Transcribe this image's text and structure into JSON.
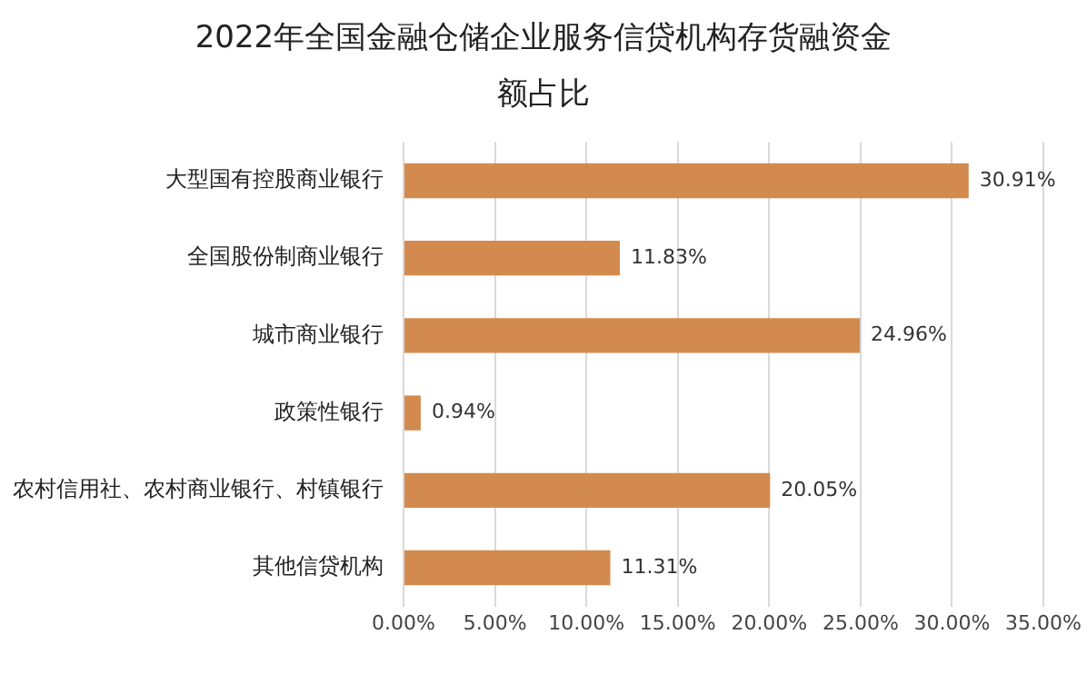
{
  "chart_data": {
    "type": "bar",
    "orientation": "horizontal",
    "title": "2022年全国金融仓储企业服务信贷机构存货融资金额占比",
    "categories": [
      "大型国有控股商业银行",
      "全国股份制商业银行",
      "城市商业银行",
      "政策性银行",
      "农村信用社、农村商业银行、村镇银行",
      "其他信贷机构"
    ],
    "values": [
      30.91,
      11.83,
      24.96,
      0.94,
      20.05,
      11.31
    ],
    "color": "#d38a4e",
    "value_labels": [
      "30.91%",
      "11.83%",
      "24.96%",
      "0.94%",
      "20.05%",
      "11.31%"
    ],
    "xlim": [
      0,
      35
    ],
    "xticks": [
      {
        "value": 0,
        "label": "0.00%"
      },
      {
        "value": 5,
        "label": "5.00%"
      },
      {
        "value": 10,
        "label": "10.00%"
      },
      {
        "value": 15,
        "label": "15.00%"
      },
      {
        "value": 20,
        "label": "20.00%"
      },
      {
        "value": 25,
        "label": "25.00%"
      },
      {
        "value": 30,
        "label": "30.00%"
      },
      {
        "value": 35,
        "label": "35.00%"
      }
    ],
    "grid": "x",
    "legend": false
  }
}
